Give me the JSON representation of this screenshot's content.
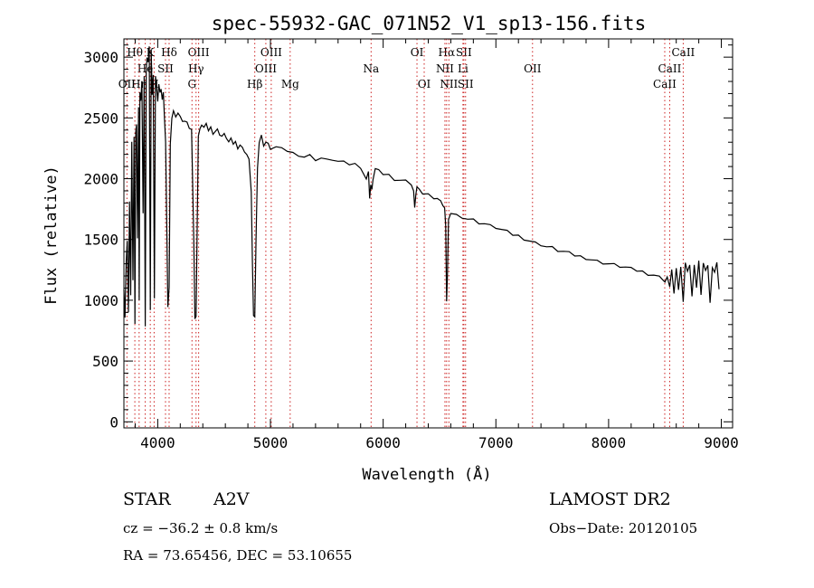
{
  "chart_data": {
    "type": "line",
    "title": "spec-55932-GAC_071N52_V1_sp13-156.fits",
    "xlabel": "Wavelength (Å)",
    "ylabel": "Flux (relative)",
    "xlim": [
      3700,
      9100
    ],
    "ylim": [
      -50,
      3150
    ],
    "x_ticks": [
      4000,
      5000,
      6000,
      7000,
      8000,
      9000
    ],
    "y_ticks": [
      0,
      500,
      1000,
      1500,
      2000,
      2500,
      3000
    ],
    "x_tick_labels": [
      "4000",
      "5000",
      "6000",
      "7000",
      "8000",
      "9000"
    ],
    "y_tick_labels": [
      "0",
      "500",
      "1000",
      "1500",
      "2000",
      "2500",
      "3000"
    ],
    "grid": false,
    "series": [
      {
        "color": "#000000",
        "x": [
          3700,
          3710,
          3720,
          3730,
          3740,
          3750,
          3760,
          3770,
          3780,
          3790,
          3798,
          3805,
          3812,
          3820,
          3830,
          3836,
          3842,
          3850,
          3860,
          3870,
          3880,
          3889,
          3898,
          3905,
          3915,
          3925,
          3934,
          3942,
          3950,
          3960,
          3970,
          3980,
          3990,
          4000,
          4010,
          4020,
          4030,
          4040,
          4050,
          4060,
          4070,
          4080,
          4090,
          4101,
          4112,
          4125,
          4140,
          4160,
          4180,
          4200,
          4220,
          4240,
          4260,
          4280,
          4300,
          4320,
          4330,
          4340,
          4350,
          4360,
          4375,
          4390,
          4410,
          4430,
          4450,
          4470,
          4490,
          4510,
          4530,
          4550,
          4570,
          4590,
          4610,
          4630,
          4650,
          4670,
          4690,
          4710,
          4730,
          4750,
          4770,
          4790,
          4810,
          4830,
          4840,
          4850,
          4861,
          4872,
          4885,
          4900,
          4920,
          4940,
          4960,
          4980,
          5000,
          5050,
          5100,
          5150,
          5200,
          5250,
          5300,
          5350,
          5400,
          5450,
          5500,
          5550,
          5600,
          5650,
          5700,
          5750,
          5800,
          5850,
          5870,
          5880,
          5890,
          5900,
          5910,
          5930,
          5960,
          6000,
          6050,
          6100,
          6150,
          6200,
          6250,
          6270,
          6280,
          6290,
          6300,
          6320,
          6350,
          6400,
          6450,
          6480,
          6510,
          6530,
          6545,
          6555,
          6563,
          6570,
          6580,
          6600,
          6650,
          6700,
          6750,
          6800,
          6850,
          6900,
          6950,
          7000,
          7050,
          7100,
          7150,
          7200,
          7250,
          7300,
          7350,
          7400,
          7450,
          7500,
          7550,
          7600,
          7650,
          7700,
          7750,
          7800,
          7850,
          7900,
          7950,
          8000,
          8050,
          8100,
          8150,
          8200,
          8250,
          8300,
          8350,
          8400,
          8450,
          8480,
          8500,
          8520,
          8542,
          8560,
          8580,
          8600,
          8620,
          8640,
          8662,
          8680,
          8700,
          8720,
          8740,
          8760,
          8780,
          8800,
          8820,
          8840,
          8860,
          8880,
          8900,
          8920,
          8940,
          8960,
          8980
        ],
        "y": [
          1100,
          860,
          1300,
          1500,
          900,
          1800,
          1050,
          2300,
          1150,
          2350,
          800,
          2400,
          2450,
          1500,
          2600,
          1000,
          2700,
          2650,
          2800,
          1700,
          2850,
          780,
          2900,
          3000,
          2950,
          3100,
          920,
          3050,
          2700,
          2850,
          1000,
          2850,
          2750,
          2650,
          2780,
          2700,
          2750,
          2650,
          2700,
          2500,
          2300,
          1600,
          950,
          1100,
          2300,
          2500,
          2550,
          2520,
          2540,
          2500,
          2480,
          2470,
          2450,
          2420,
          2400,
          1500,
          850,
          860,
          1600,
          2350,
          2400,
          2450,
          2420,
          2440,
          2400,
          2420,
          2380,
          2390,
          2400,
          2370,
          2350,
          2360,
          2340,
          2300,
          2320,
          2290,
          2300,
          2260,
          2280,
          2250,
          2230,
          2200,
          2150,
          1900,
          1300,
          860,
          870,
          1500,
          2100,
          2300,
          2350,
          2280,
          2300,
          2280,
          2250,
          2260,
          2240,
          2230,
          2210,
          2200,
          2180,
          2190,
          2160,
          2170,
          2150,
          2160,
          2140,
          2130,
          2120,
          2120,
          2100,
          2000,
          2050,
          1850,
          1950,
          1900,
          2000,
          2080,
          2060,
          2040,
          2030,
          2000,
          1990,
          1980,
          1960,
          1900,
          1750,
          1880,
          1930,
          1900,
          1880,
          1870,
          1850,
          1840,
          1810,
          1790,
          1760,
          1600,
          1000,
          1200,
          1650,
          1720,
          1700,
          1690,
          1670,
          1660,
          1640,
          1630,
          1610,
          1600,
          1580,
          1560,
          1540,
          1530,
          1510,
          1490,
          1470,
          1460,
          1440,
          1430,
          1410,
          1400,
          1385,
          1370,
          1360,
          1350,
          1335,
          1320,
          1310,
          1300,
          1290,
          1280,
          1270,
          1255,
          1245,
          1235,
          1220,
          1210,
          1190,
          1180,
          1150,
          1180,
          1120,
          1250,
          1040,
          1270,
          1080,
          1290,
          990,
          1300,
          1250,
          1290,
          1020,
          1300,
          1100,
          1310,
          1050,
          1300,
          1260,
          1290,
          970,
          1280,
          1230,
          1300,
          1100
        ]
      }
    ],
    "line_markers": [
      {
        "label": "Hθ",
        "wavelength": 3797,
        "row": 1
      },
      {
        "label": "K",
        "wavelength": 3934,
        "row": 1
      },
      {
        "label": "Hδ",
        "wavelength": 4101,
        "row": 1
      },
      {
        "label": "OIII",
        "wavelength": 4363,
        "row": 1
      },
      {
        "label": "OIII",
        "wavelength": 5007,
        "row": 1
      },
      {
        "label": "OI",
        "wavelength": 6300,
        "row": 1
      },
      {
        "label": "Hα",
        "wavelength": 6563,
        "row": 1
      },
      {
        "label": "SII",
        "wavelength": 6716,
        "row": 1
      },
      {
        "label": "CaII",
        "wavelength": 8662,
        "row": 1
      },
      {
        "label": "He",
        "wavelength": 3889,
        "row": 2
      },
      {
        "label": "SII",
        "wavelength": 4069,
        "row": 2
      },
      {
        "label": "Hγ",
        "wavelength": 4340,
        "row": 2
      },
      {
        "label": "OIII",
        "wavelength": 4959,
        "row": 2
      },
      {
        "label": "Na",
        "wavelength": 5893,
        "row": 2
      },
      {
        "label": "NII",
        "wavelength": 6548,
        "row": 2
      },
      {
        "label": "Li",
        "wavelength": 6708,
        "row": 2
      },
      {
        "label": "OII",
        "wavelength": 7325,
        "row": 2
      },
      {
        "label": "CaII",
        "wavelength": 8542,
        "row": 2
      },
      {
        "label": "OII",
        "wavelength": 3727,
        "row": 3
      },
      {
        "label": "Hη",
        "wavelength": 3835,
        "row": 3
      },
      {
        "label": "H",
        "wavelength": 3968,
        "row": 3
      },
      {
        "label": "G",
        "wavelength": 4304,
        "row": 3
      },
      {
        "label": "Hβ",
        "wavelength": 4861,
        "row": 3
      },
      {
        "label": "Mg",
        "wavelength": 5175,
        "row": 3
      },
      {
        "label": "OI",
        "wavelength": 6364,
        "row": 3
      },
      {
        "label": "NII",
        "wavelength": 6583,
        "row": 3
      },
      {
        "label": "SII",
        "wavelength": 6731,
        "row": 3
      },
      {
        "label": "CaII",
        "wavelength": 8498,
        "row": 3
      }
    ]
  },
  "info": {
    "object_class": "STAR",
    "subclass": "A2V",
    "survey": "LAMOST DR2",
    "redshift": "cz = −36.2 ± 0.8 km/s",
    "obs_date": "Obs−Date: 20120105",
    "coords": "RA =  73.65456, DEC =  53.10655"
  }
}
